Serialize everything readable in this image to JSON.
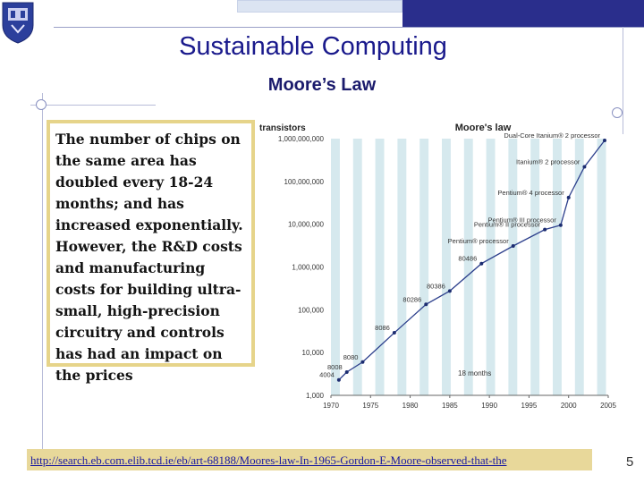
{
  "slide": {
    "title": "Sustainable Computing",
    "subtitle": "Moore’s Law",
    "body_text": "The number of chips on the same area has doubled every 18-24 months; and has increased exponentially. However, the R&D costs and manufacturing costs for building ultra-small, high-precision circuitry and controls has had an impact on the prices",
    "link_text": "http://search.eb.com.elib.tcd.ie/eb/art-68188/Moores-law-In-1965-Gordon-E-Moore-observed-that-the",
    "page_number": "5"
  },
  "chart_data": {
    "type": "line",
    "title": "Moore's law",
    "ylabel": "transistors",
    "y_scale": "log",
    "ylim": [
      1000,
      1000000000
    ],
    "xlim": [
      1970,
      2005
    ],
    "x_ticks": [
      "1970",
      "1975",
      "1980",
      "1985",
      "1990",
      "1995",
      "2000",
      "2005"
    ],
    "y_ticks": [
      "1,000",
      "10,000",
      "100,000",
      "1,000,000",
      "10,000,000",
      "100,000,000",
      "1,000,000,000"
    ],
    "annotation": "18 months",
    "points": [
      {
        "label": "4004",
        "x": 1971,
        "y": 2300
      },
      {
        "label": "8008",
        "x": 1972,
        "y": 3500
      },
      {
        "label": "8080",
        "x": 1974,
        "y": 6000
      },
      {
        "label": "8086",
        "x": 1978,
        "y": 29000
      },
      {
        "label": "80286",
        "x": 1982,
        "y": 134000
      },
      {
        "label": "80386",
        "x": 1985,
        "y": 275000
      },
      {
        "label": "80486",
        "x": 1989,
        "y": 1200000
      },
      {
        "label": "Pentium® processor",
        "x": 1993,
        "y": 3100000
      },
      {
        "label": "Pentium® II processor",
        "x": 1997,
        "y": 7500000
      },
      {
        "label": "Pentium® III processor",
        "x": 1999,
        "y": 9500000
      },
      {
        "label": "Pentium® 4 processor",
        "x": 2000,
        "y": 42000000
      },
      {
        "label": "Itanium® 2 processor",
        "x": 2002,
        "y": 220000000
      },
      {
        "label": "Dual-Core Itanium® 2 processor",
        "x": 2006,
        "y": 1700000000
      }
    ],
    "colors": {
      "stripe": "#d6e9ee",
      "line": "#2c3f8c",
      "point": "#1c2c70"
    }
  }
}
